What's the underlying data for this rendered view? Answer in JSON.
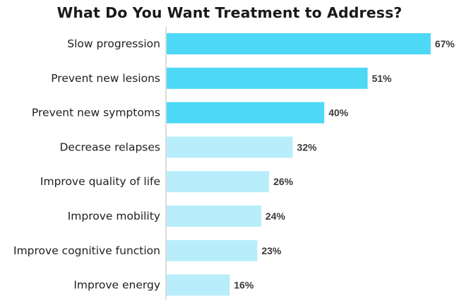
{
  "chart_data": {
    "type": "bar",
    "orientation": "horizontal",
    "title": "What Do You Want Treatment to Address?",
    "categories": [
      "Slow progression",
      "Prevent new lesions",
      "Prevent new symptoms",
      "Decrease relapses",
      "Improve quality of life",
      "Improve mobility",
      "Improve cognitive function",
      "Improve energy"
    ],
    "values": [
      67,
      51,
      40,
      32,
      26,
      24,
      23,
      16
    ],
    "value_labels": [
      "67%",
      "51%",
      "40%",
      "32%",
      "26%",
      "24%",
      "23%",
      "16%"
    ],
    "value_unit": "%",
    "xlim": [
      0,
      70
    ],
    "grid": false,
    "bar_colors": [
      "#4dd8f6",
      "#4dd8f6",
      "#4dd8f6",
      "#b8eefb",
      "#b8eefb",
      "#b8eefb",
      "#b8eefb",
      "#b8eefb"
    ],
    "axis_color": "#d0d0d0"
  }
}
